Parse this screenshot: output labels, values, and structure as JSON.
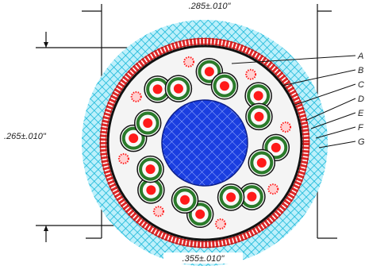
{
  "dimensions": {
    "top": ".285±.010\"",
    "left": ".265±.010\"",
    "bottom": ".355±.010\""
  },
  "callouts": [
    "A",
    "B",
    "C",
    "D",
    "E",
    "F",
    "G"
  ],
  "colors": {
    "jacket": "#22c8e6",
    "braid": "#e23030",
    "conductor": "#ff1a1a",
    "insulation": "#2a7a2a",
    "core": "#1a3ee0",
    "filler": "#f2f2f2",
    "link": "#33cc33",
    "line": "#111111"
  }
}
